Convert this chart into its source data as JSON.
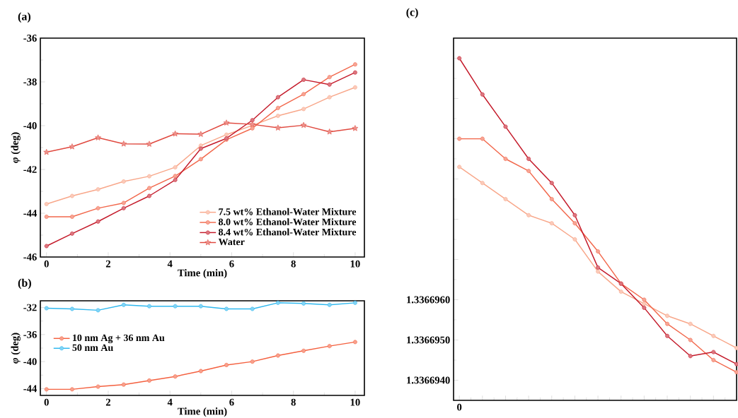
{
  "chart_data": [
    {
      "type": "line",
      "title": "(a)",
      "xlabel": "Time (min)",
      "ylabel": "*φ* (deg)",
      "marker": "circle",
      "legend": "bottom right",
      "x": [
        0,
        0.83,
        1.67,
        2.5,
        3.33,
        4.17,
        5,
        5.83,
        6.67,
        7.5,
        8.33,
        9.17,
        10
      ],
      "xlim": [
        -0.2,
        10.3
      ],
      "xticks": [
        0,
        2,
        4,
        6,
        8,
        10
      ],
      "ylim": [
        -46,
        -36
      ],
      "yticks": [
        -46,
        -44,
        -42,
        -40,
        -38,
        -36
      ],
      "series": [
        {
          "name": "7.5 wt% Ethanol-Water Mixture",
          "color": "#f8a78a",
          "values": [
            -43.58,
            -43.21,
            -42.91,
            -42.55,
            -42.31,
            -41.9,
            -40.91,
            -40.41,
            -39.99,
            -39.55,
            -39.24,
            -38.7,
            -38.25
          ]
        },
        {
          "name": "8.0 wt% Ethanol-Water Mixture",
          "color": "#f2684c",
          "values": [
            -44.16,
            -44.16,
            -43.77,
            -43.53,
            -42.85,
            -42.3,
            -41.53,
            -40.64,
            -40.12,
            -39.19,
            -38.56,
            -37.78,
            -37.2
          ]
        },
        {
          "name": "8.4 wt% Ethanol-Water Mixture",
          "color": "#c41a2a",
          "values": [
            -45.5,
            -44.93,
            -44.38,
            -43.77,
            -43.21,
            -42.48,
            -41.05,
            -40.58,
            -39.75,
            -38.7,
            -37.9,
            -38.12,
            -37.57
          ]
        },
        {
          "name": "Water",
          "color": "#e0493f",
          "marker": "star",
          "values": [
            -41.21,
            -40.96,
            -40.55,
            -40.83,
            -40.84,
            -40.37,
            -40.39,
            -39.87,
            -39.94,
            -40.1,
            -39.98,
            -40.28,
            -40.12
          ]
        }
      ]
    },
    {
      "type": "line",
      "title": "(b)",
      "xlabel": "Time (min)",
      "ylabel": "*φ* (deg)",
      "marker": "circle",
      "legend": "left",
      "x": [
        0,
        0.83,
        1.67,
        2.5,
        3.33,
        4.17,
        5,
        5.83,
        6.67,
        7.5,
        8.33,
        9.17,
        10
      ],
      "xlim": [
        -0.2,
        10.3
      ],
      "xticks": [
        0,
        2,
        4,
        6,
        8,
        10
      ],
      "ylim": [
        -45,
        -31
      ],
      "yticks": [
        -44,
        -40,
        -36,
        -32
      ],
      "series": [
        {
          "name": "10 nm Ag + 36 nm Au",
          "color": "#f4603f",
          "values": [
            -44.1,
            -44.1,
            -43.7,
            -43.4,
            -42.8,
            -42.2,
            -41.4,
            -40.5,
            -40.0,
            -39.1,
            -38.4,
            -37.7,
            -37.1
          ]
        },
        {
          "name": "50 nm Au",
          "color": "#2fb8ef",
          "values": [
            -32.1,
            -32.2,
            -32.4,
            -31.6,
            -31.8,
            -31.8,
            -31.8,
            -32.2,
            -32.2,
            -31.3,
            -31.4,
            -31.6,
            -31.3
          ]
        }
      ]
    },
    {
      "type": "line",
      "title": "(c)",
      "marker": "circle",
      "categories": [
        "0",
        null,
        null,
        null,
        null,
        null,
        null,
        null,
        null,
        null,
        null,
        null,
        null
      ],
      "ylim": [
        1.3366935,
        1.3367025
      ],
      "yticks": [
        {
          "value": 1.336694,
          "label": "1.3366940"
        },
        {
          "value": 1.336695,
          "label": "1.3366950"
        },
        {
          "value": 1.336696,
          "label": "1.3366960"
        },
        {
          "value": 1.336697,
          "label": null
        },
        {
          "value": 1.336698,
          "label": null
        },
        {
          "value": 1.336699,
          "label": null
        },
        {
          "value": 1.3367,
          "label": null
        },
        {
          "value": 1.336701,
          "label": null
        },
        {
          "value": 1.336702,
          "label": null
        }
      ],
      "series": [
        {
          "color": "#f8a78a",
          "values": [
            1.3366993,
            1.3366989,
            1.3366985,
            1.3366981,
            1.3366979,
            1.3366975,
            1.3366967,
            1.3366962,
            1.3366959,
            1.3366956,
            1.3366954,
            1.3366951,
            1.3366948
          ]
        },
        {
          "color": "#f2684c",
          "values": [
            1.3367,
            1.3367,
            1.3366995,
            1.3366992,
            1.3366985,
            1.3366979,
            1.3366972,
            1.3366964,
            1.336696,
            1.3366954,
            1.336695,
            1.3366945,
            1.3366942
          ]
        },
        {
          "color": "#c41a2a",
          "values": [
            1.336702,
            1.3367011,
            1.3367003,
            1.3366995,
            1.3366989,
            1.3366981,
            1.3366968,
            1.3366964,
            1.3366958,
            1.3366951,
            1.3366946,
            1.3366947,
            1.3366944
          ]
        }
      ]
    }
  ]
}
